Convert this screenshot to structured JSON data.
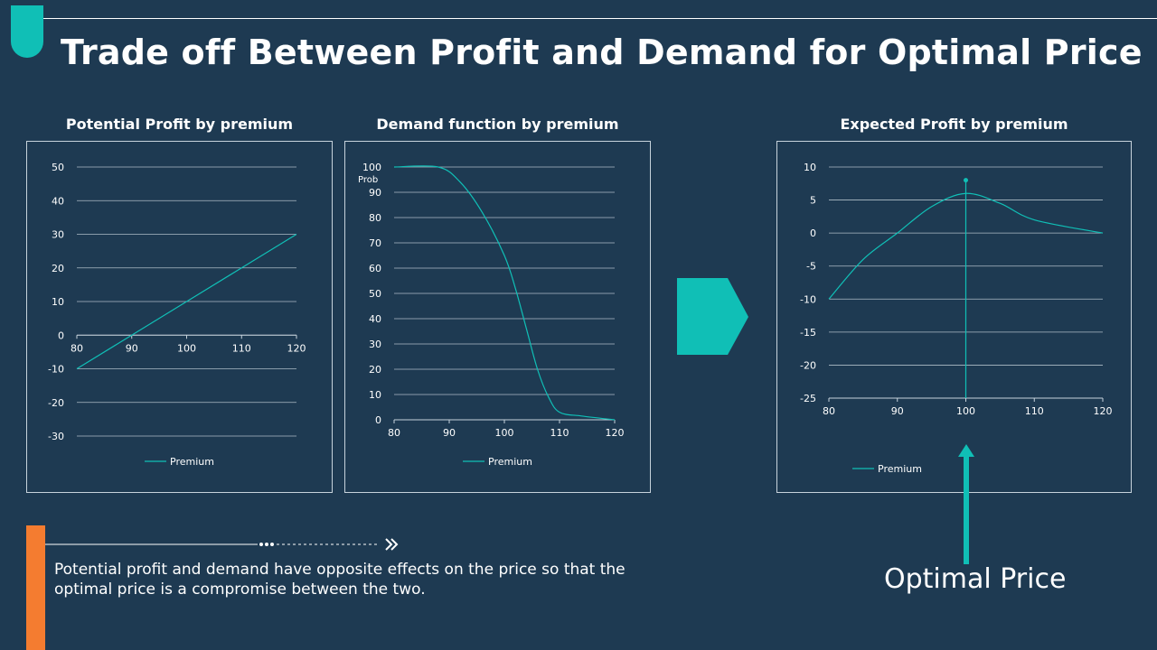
{
  "header": {
    "title": "Trade off Between Profit and Demand for Optimal Price"
  },
  "colors": {
    "background": "#1e3a52",
    "accent": "#10bfb6",
    "orange": "#f47c30",
    "grid": "#c7d3dc"
  },
  "charts": [
    {
      "id": "profit",
      "type": "line",
      "title": "Potential Profit by premium",
      "legend": "Premium",
      "x": [
        80,
        90,
        100,
        110,
        120
      ],
      "values": [
        -10,
        0,
        10,
        20,
        30
      ],
      "xticks": [
        "80",
        "90",
        "100",
        "110",
        "120"
      ],
      "yticks": [
        "50",
        "40",
        "30",
        "20",
        "10",
        "0",
        "-10",
        "-20",
        "-30"
      ],
      "xlim": [
        80,
        120
      ],
      "ylim": [
        -30,
        50
      ]
    },
    {
      "id": "demand",
      "type": "line",
      "title": "Demand function by premium",
      "legend": "Premium",
      "ylabel": "Prob",
      "x": [
        80,
        88,
        92,
        96,
        100,
        102,
        104,
        106,
        108,
        110,
        114,
        120
      ],
      "values": [
        100,
        100,
        94,
        82,
        65,
        52,
        36,
        20,
        9,
        3,
        1.5,
        0
      ],
      "xticks": [
        "80",
        "90",
        "100",
        "110",
        "120"
      ],
      "yticks": [
        "100",
        "90",
        "80",
        "70",
        "60",
        "50",
        "40",
        "30",
        "20",
        "10",
        "0"
      ],
      "xlim": [
        80,
        120
      ],
      "ylim": [
        0,
        100
      ]
    },
    {
      "id": "expected",
      "type": "line",
      "title": "Expected Profit by premium",
      "legend": "Premium",
      "x": [
        80,
        85,
        90,
        95,
        100,
        105,
        110,
        120
      ],
      "values": [
        -10,
        -4,
        0,
        4,
        6,
        4.5,
        2,
        0
      ],
      "marker_x": 100,
      "marker_y": 8,
      "xticks": [
        "80",
        "90",
        "100",
        "110",
        "120"
      ],
      "yticks": [
        "10",
        "5",
        "0",
        "-5",
        "-10",
        "-15",
        "-20",
        "-25"
      ],
      "xlim": [
        80,
        120
      ],
      "ylim": [
        -25,
        10
      ]
    }
  ],
  "optimal_label": "Optimal Price",
  "note": "Potential profit and demand have opposite effects on the price so that the optimal price is a compromise between the two."
}
